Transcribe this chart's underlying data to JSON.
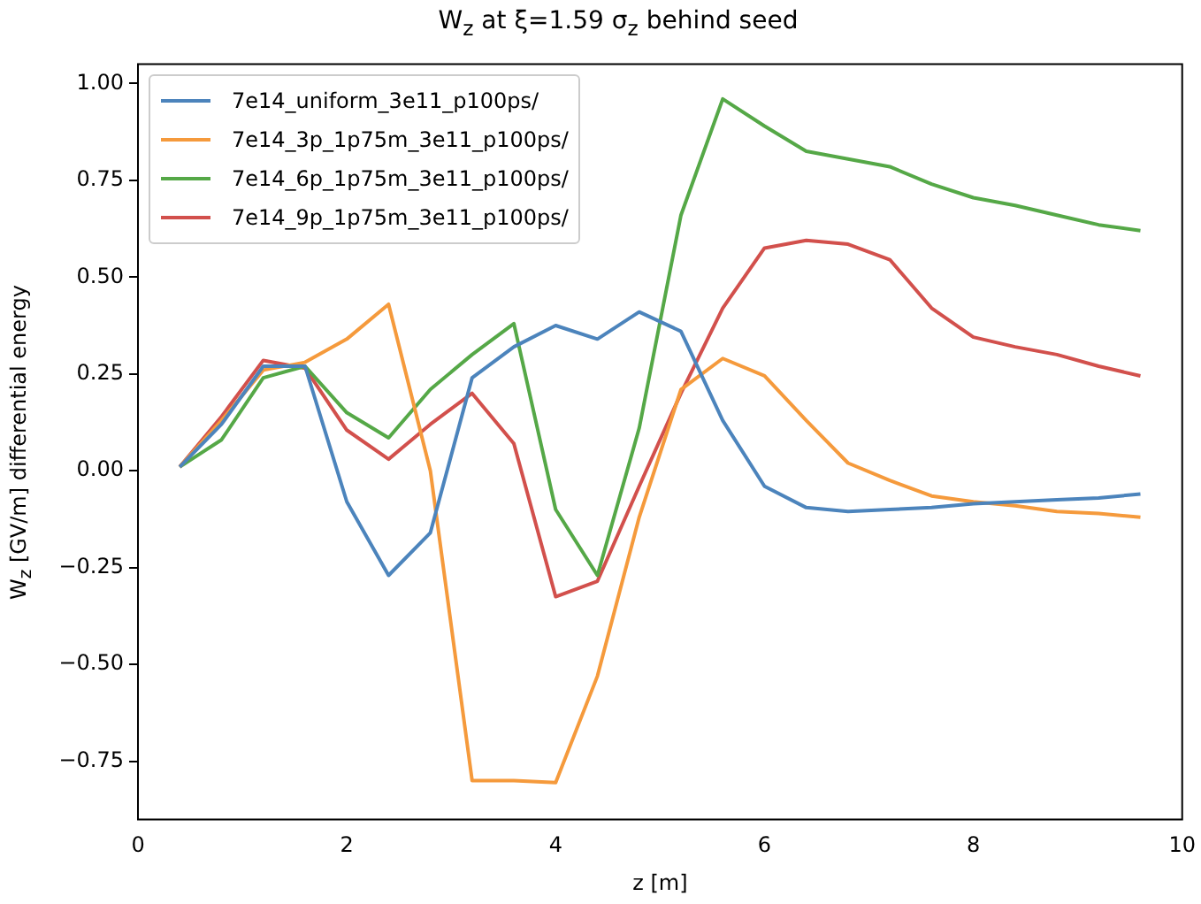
{
  "chart_data": {
    "type": "line",
    "title": "W$_{z}$ at ξ=1.59 σ$_{z}$ behind seed",
    "xlabel": "z [m]",
    "ylabel": "W$_{z}$ [GV/m] differential energy",
    "x": [
      0.4,
      0.8,
      1.2,
      1.6,
      2.0,
      2.4,
      2.8,
      3.2,
      3.6,
      4.0,
      4.4,
      4.8,
      5.2,
      5.6,
      6.0,
      6.4,
      6.8,
      7.2,
      7.6,
      8.0,
      8.4,
      8.8,
      9.2,
      9.6
    ],
    "series": [
      {
        "name": "7e14_uniform_3e11_p100ps/",
        "color": "#4c84bc",
        "values": [
          0.01,
          0.12,
          0.27,
          0.27,
          -0.08,
          -0.27,
          -0.16,
          0.24,
          0.32,
          0.375,
          0.34,
          0.41,
          0.36,
          0.13,
          -0.04,
          -0.095,
          -0.105,
          -0.1,
          -0.095,
          -0.085,
          -0.08,
          -0.075,
          -0.07,
          -0.06
        ]
      },
      {
        "name": "7e14_3p_1p75m_3e11_p100ps/",
        "color": "#f59a3c",
        "values": [
          0.01,
          0.13,
          0.26,
          0.28,
          0.34,
          0.43,
          0.0,
          -0.8,
          -0.8,
          -0.805,
          -0.53,
          -0.12,
          0.21,
          0.29,
          0.245,
          0.13,
          0.02,
          -0.025,
          -0.065,
          -0.08,
          -0.09,
          -0.105,
          -0.11,
          -0.12
        ]
      },
      {
        "name": "7e14_6p_1p75m_3e11_p100ps/",
        "color": "#55a847",
        "values": [
          0.01,
          0.08,
          0.24,
          0.27,
          0.15,
          0.085,
          0.21,
          0.3,
          0.38,
          -0.1,
          -0.27,
          0.11,
          0.66,
          0.96,
          0.89,
          0.825,
          0.805,
          0.785,
          0.74,
          0.705,
          0.685,
          0.66,
          0.635,
          0.62
        ]
      },
      {
        "name": "7e14_9p_1p75m_3e11_p100ps/",
        "color": "#d2504c",
        "values": [
          0.01,
          0.14,
          0.285,
          0.265,
          0.105,
          0.03,
          0.12,
          0.2,
          0.07,
          -0.325,
          -0.285,
          -0.04,
          0.2,
          0.42,
          0.575,
          0.595,
          0.585,
          0.545,
          0.42,
          0.345,
          0.32,
          0.3,
          0.27,
          0.245
        ]
      }
    ],
    "xlim": [
      0,
      10
    ],
    "xticks": [
      0,
      2,
      4,
      6,
      8,
      10
    ],
    "ylim": [
      -0.9,
      1.05
    ],
    "yticks": [
      {
        "value": -0.75,
        "label": "−0.75"
      },
      {
        "value": -0.5,
        "label": "−0.50"
      },
      {
        "value": -0.25,
        "label": "−0.25"
      },
      {
        "value": 0,
        "label": "0.00"
      },
      {
        "value": 0.25,
        "label": "0.25"
      },
      {
        "value": 0.5,
        "label": "0.50"
      },
      {
        "value": 0.75,
        "label": "0.75"
      },
      {
        "value": 1,
        "label": "1.00"
      }
    ],
    "grid": false,
    "legend": "top left",
    "marker": "none",
    "line_style": "solid"
  }
}
